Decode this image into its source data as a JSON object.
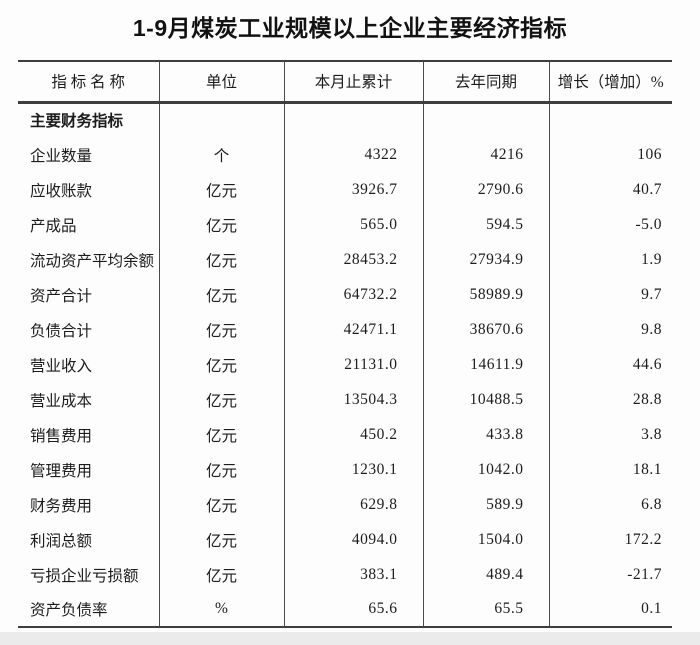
{
  "title": "1-9月煤炭工业规模以上企业主要经济指标",
  "colors": {
    "background": "#fdfdfd",
    "border": "#3e3e3e",
    "text": "#1c1c1c",
    "footer_strip": "#ebebeb"
  },
  "table": {
    "headers": {
      "indicator": "指 标 名 称",
      "unit": "单位",
      "current": "本月止累计",
      "last_year": "去年同期",
      "growth": "增长（增加）%"
    },
    "section_header": "主要财务指标",
    "rows": [
      {
        "name": "企业数量",
        "unit": "个",
        "current": "4322",
        "last_year": "4216",
        "growth": "106"
      },
      {
        "name": "应收账款",
        "unit": "亿元",
        "current": "3926.7",
        "last_year": "2790.6",
        "growth": "40.7"
      },
      {
        "name": "产成品",
        "unit": "亿元",
        "current": "565.0",
        "last_year": "594.5",
        "growth": "-5.0"
      },
      {
        "name": "流动资产平均余额",
        "unit": "亿元",
        "current": "28453.2",
        "last_year": "27934.9",
        "growth": "1.9"
      },
      {
        "name": "资产合计",
        "unit": "亿元",
        "current": "64732.2",
        "last_year": "58989.9",
        "growth": "9.7"
      },
      {
        "name": "负债合计",
        "unit": "亿元",
        "current": "42471.1",
        "last_year": "38670.6",
        "growth": "9.8"
      },
      {
        "name": "营业收入",
        "unit": "亿元",
        "current": "21131.0",
        "last_year": "14611.9",
        "growth": "44.6"
      },
      {
        "name": "营业成本",
        "unit": "亿元",
        "current": "13504.3",
        "last_year": "10488.5",
        "growth": "28.8"
      },
      {
        "name": "销售费用",
        "unit": "亿元",
        "current": "450.2",
        "last_year": "433.8",
        "growth": "3.8"
      },
      {
        "name": "管理费用",
        "unit": "亿元",
        "current": "1230.1",
        "last_year": "1042.0",
        "growth": "18.1"
      },
      {
        "name": "财务费用",
        "unit": "亿元",
        "current": "629.8",
        "last_year": "589.9",
        "growth": "6.8"
      },
      {
        "name": "利润总额",
        "unit": "亿元",
        "current": "4094.0",
        "last_year": "1504.0",
        "growth": "172.2"
      },
      {
        "name": "亏损企业亏损额",
        "unit": "亿元",
        "current": "383.1",
        "last_year": "489.4",
        "growth": "-21.7"
      },
      {
        "name": "资产负债率",
        "unit": "%",
        "current": "65.6",
        "last_year": "65.5",
        "growth": "0.1"
      }
    ]
  },
  "chart_data": {
    "type": "table",
    "title": "1-9月煤炭工业规模以上企业主要经济指标",
    "columns": [
      "指标名称",
      "单位",
      "本月止累计",
      "去年同期",
      "增长（增加）%"
    ],
    "section_header": "主要财务指标",
    "rows": [
      [
        "企业数量",
        "个",
        4322,
        4216,
        106
      ],
      [
        "应收账款",
        "亿元",
        3926.7,
        2790.6,
        40.7
      ],
      [
        "产成品",
        "亿元",
        565.0,
        594.5,
        -5.0
      ],
      [
        "流动资产平均余额",
        "亿元",
        28453.2,
        27934.9,
        1.9
      ],
      [
        "资产合计",
        "亿元",
        64732.2,
        58989.9,
        9.7
      ],
      [
        "负债合计",
        "亿元",
        42471.1,
        38670.6,
        9.8
      ],
      [
        "营业收入",
        "亿元",
        21131.0,
        14611.9,
        44.6
      ],
      [
        "营业成本",
        "亿元",
        13504.3,
        10488.5,
        28.8
      ],
      [
        "销售费用",
        "亿元",
        450.2,
        433.8,
        3.8
      ],
      [
        "管理费用",
        "亿元",
        1230.1,
        1042.0,
        18.1
      ],
      [
        "财务费用",
        "亿元",
        629.8,
        589.9,
        6.8
      ],
      [
        "利润总额",
        "亿元",
        4094.0,
        1504.0,
        172.2
      ],
      [
        "亏损企业亏损额",
        "亿元",
        383.1,
        489.4,
        -21.7
      ],
      [
        "资产负债率",
        "%",
        65.6,
        65.5,
        0.1
      ]
    ]
  }
}
